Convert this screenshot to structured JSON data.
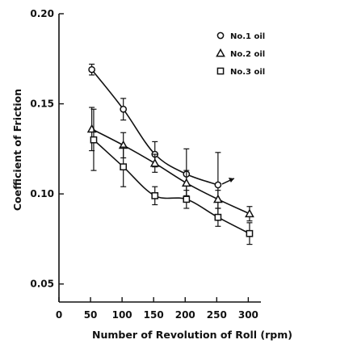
{
  "chart_data": {
    "type": "line",
    "xlabel": "Number of Revolution of Roll  (rpm)",
    "ylabel": "Coefficient of Friction",
    "xlim": [
      0,
      320
    ],
    "ylim": [
      0.04,
      0.2
    ],
    "x_ticks": [
      "0",
      "50",
      "100",
      "150",
      "200",
      "250",
      "300"
    ],
    "x_tick_values": [
      0,
      50,
      100,
      150,
      200,
      250,
      300
    ],
    "y_ticks": [
      "0.20",
      "0.15",
      "0.10",
      "0.05"
    ],
    "y_tick_values": [
      0.2,
      0.15,
      0.1,
      0.05
    ],
    "legend_position": "top-right",
    "grid": false,
    "series": [
      {
        "name": "No.1 oil",
        "marker": "circle",
        "x": [
          52,
          102,
          152,
          202,
          252
        ],
        "y": [
          0.169,
          0.147,
          0.122,
          0.111,
          0.105
        ],
        "err": [
          0.003,
          0.006,
          0.007,
          0.014,
          0.018
        ],
        "trailing_arrow": true
      },
      {
        "name": "No.2 oil",
        "marker": "triangle",
        "x": [
          52,
          102,
          152,
          202,
          252,
          302
        ],
        "y": [
          0.136,
          0.127,
          0.117,
          0.106,
          0.097,
          0.089
        ],
        "err": [
          0.012,
          0.007,
          0.005,
          0.007,
          0.005,
          0.004
        ]
      },
      {
        "name": "No.3 oil",
        "marker": "square",
        "x": [
          55,
          102,
          152,
          202,
          252,
          302
        ],
        "y": [
          0.13,
          0.115,
          0.099,
          0.097,
          0.087,
          0.078
        ],
        "err": [
          0.017,
          0.011,
          0.005,
          0.005,
          0.005,
          0.006
        ]
      }
    ]
  }
}
